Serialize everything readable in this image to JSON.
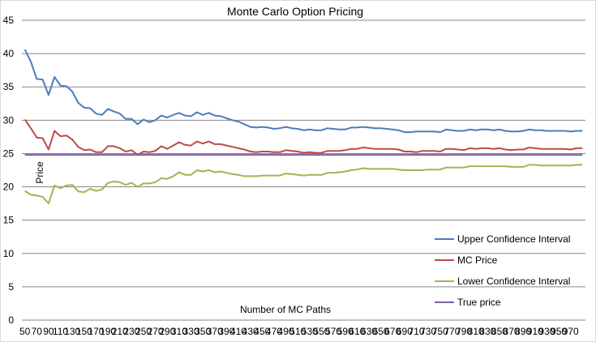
{
  "chart_data": {
    "type": "line",
    "title": "Monte Carlo Option Pricing",
    "xlabel": "Number of MC Paths",
    "ylabel": "Price",
    "ylim": [
      0,
      45
    ],
    "yticks": [
      0,
      5,
      10,
      15,
      20,
      25,
      30,
      35,
      40,
      45
    ],
    "x": [
      50,
      60,
      70,
      80,
      90,
      100,
      110,
      120,
      130,
      140,
      150,
      160,
      170,
      180,
      190,
      200,
      210,
      220,
      230,
      240,
      250,
      260,
      270,
      280,
      290,
      300,
      310,
      320,
      330,
      340,
      350,
      360,
      370,
      380,
      390,
      400,
      410,
      420,
      430,
      440,
      450,
      460,
      470,
      480,
      490,
      500,
      510,
      520,
      530,
      540,
      550,
      560,
      570,
      580,
      590,
      600,
      610,
      620,
      630,
      640,
      650,
      660,
      670,
      680,
      690,
      700,
      710,
      720,
      730,
      740,
      750,
      760,
      770,
      780,
      790,
      800,
      810,
      820,
      830,
      840,
      850,
      860,
      870,
      880,
      890,
      900,
      910,
      920,
      930,
      940,
      950,
      960,
      970,
      980,
      990
    ],
    "xtick_labels": [
      "50",
      "70",
      "90",
      "110",
      "130",
      "150",
      "170",
      "190",
      "210",
      "230",
      "250",
      "270",
      "290",
      "310",
      "330",
      "350",
      "370",
      "390",
      "410",
      "430",
      "450",
      "470",
      "490",
      "510",
      "530",
      "550",
      "570",
      "590",
      "610",
      "630",
      "650",
      "670",
      "690",
      "710",
      "730",
      "750",
      "770",
      "790",
      "810",
      "830",
      "850",
      "870",
      "890",
      "910",
      "930",
      "950",
      "970"
    ],
    "grid": "horizontal",
    "legend_position": "right",
    "series": [
      {
        "name": "Upper Confidence Interval",
        "color": "#4a7ebb",
        "values": [
          40.6,
          38.8,
          36.2,
          36.1,
          33.8,
          36.5,
          35.2,
          35.1,
          34.3,
          32.6,
          31.9,
          31.8,
          31.0,
          30.8,
          31.7,
          31.3,
          31.0,
          30.2,
          30.2,
          29.4,
          30.1,
          29.7,
          30.0,
          30.7,
          30.4,
          30.8,
          31.1,
          30.7,
          30.6,
          31.2,
          30.8,
          31.1,
          30.7,
          30.6,
          30.3,
          30.0,
          29.8,
          29.4,
          29.0,
          28.9,
          29.0,
          28.9,
          28.7,
          28.8,
          29.0,
          28.8,
          28.7,
          28.5,
          28.6,
          28.5,
          28.5,
          28.8,
          28.7,
          28.6,
          28.6,
          28.9,
          28.9,
          29.0,
          28.9,
          28.8,
          28.8,
          28.7,
          28.6,
          28.5,
          28.2,
          28.2,
          28.3,
          28.3,
          28.3,
          28.3,
          28.2,
          28.6,
          28.5,
          28.4,
          28.4,
          28.6,
          28.5,
          28.6,
          28.6,
          28.5,
          28.6,
          28.4,
          28.3,
          28.3,
          28.4,
          28.6,
          28.5,
          28.5,
          28.4,
          28.4,
          28.4,
          28.4,
          28.3,
          28.4,
          28.4
        ]
      },
      {
        "name": "MC Price",
        "color": "#be4b48",
        "values": [
          30.1,
          28.8,
          27.4,
          27.3,
          25.6,
          28.4,
          27.6,
          27.7,
          27.1,
          26.0,
          25.5,
          25.6,
          25.2,
          25.2,
          26.1,
          26.1,
          25.8,
          25.3,
          25.5,
          24.8,
          25.3,
          25.2,
          25.4,
          26.1,
          25.7,
          26.2,
          26.7,
          26.3,
          26.2,
          26.8,
          26.5,
          26.8,
          26.4,
          26.4,
          26.2,
          26.0,
          25.8,
          25.6,
          25.3,
          25.2,
          25.3,
          25.3,
          25.2,
          25.2,
          25.5,
          25.4,
          25.3,
          25.1,
          25.2,
          25.1,
          25.1,
          25.4,
          25.4,
          25.4,
          25.5,
          25.7,
          25.7,
          25.9,
          25.8,
          25.7,
          25.7,
          25.7,
          25.7,
          25.6,
          25.3,
          25.3,
          25.2,
          25.4,
          25.4,
          25.4,
          25.3,
          25.7,
          25.7,
          25.6,
          25.5,
          25.8,
          25.7,
          25.8,
          25.8,
          25.7,
          25.8,
          25.6,
          25.5,
          25.6,
          25.6,
          25.9,
          25.8,
          25.7,
          25.7,
          25.7,
          25.7,
          25.7,
          25.6,
          25.8,
          25.8
        ]
      },
      {
        "name": "Lower Confidence Interval",
        "color": "#98b954",
        "values": [
          19.4,
          18.8,
          18.7,
          18.5,
          17.5,
          20.2,
          19.8,
          20.2,
          20.3,
          19.3,
          19.2,
          19.7,
          19.4,
          19.6,
          20.6,
          20.8,
          20.7,
          20.3,
          20.6,
          20.0,
          20.5,
          20.5,
          20.7,
          21.3,
          21.2,
          21.6,
          22.2,
          21.8,
          21.8,
          22.5,
          22.3,
          22.5,
          22.2,
          22.3,
          22.1,
          21.9,
          21.8,
          21.6,
          21.6,
          21.6,
          21.7,
          21.7,
          21.7,
          21.7,
          22.0,
          21.9,
          21.8,
          21.7,
          21.8,
          21.8,
          21.8,
          22.1,
          22.1,
          22.2,
          22.3,
          22.5,
          22.6,
          22.8,
          22.7,
          22.7,
          22.7,
          22.7,
          22.7,
          22.6,
          22.5,
          22.5,
          22.5,
          22.5,
          22.6,
          22.6,
          22.6,
          22.9,
          22.9,
          22.9,
          22.9,
          23.1,
          23.1,
          23.1,
          23.1,
          23.1,
          23.1,
          23.1,
          23.0,
          23.0,
          23.0,
          23.3,
          23.3,
          23.2,
          23.2,
          23.2,
          23.2,
          23.2,
          23.2,
          23.3,
          23.3
        ]
      },
      {
        "name": "True price",
        "color": "#7d60a0",
        "values": [
          24.8,
          24.8,
          24.8,
          24.8,
          24.8,
          24.8,
          24.8,
          24.8,
          24.8,
          24.8,
          24.8,
          24.8,
          24.8,
          24.8,
          24.8,
          24.8,
          24.8,
          24.8,
          24.8,
          24.8,
          24.8,
          24.8,
          24.8,
          24.8,
          24.8,
          24.8,
          24.8,
          24.8,
          24.8,
          24.8,
          24.8,
          24.8,
          24.8,
          24.8,
          24.8,
          24.8,
          24.8,
          24.8,
          24.8,
          24.8,
          24.8,
          24.8,
          24.8,
          24.8,
          24.8,
          24.8,
          24.8,
          24.8,
          24.8,
          24.8,
          24.8,
          24.8,
          24.8,
          24.8,
          24.8,
          24.8,
          24.8,
          24.8,
          24.8,
          24.8,
          24.8,
          24.8,
          24.8,
          24.8,
          24.8,
          24.8,
          24.8,
          24.8,
          24.8,
          24.8,
          24.8,
          24.8,
          24.8,
          24.8,
          24.8,
          24.8,
          24.8,
          24.8,
          24.8,
          24.8,
          24.8,
          24.8,
          24.8,
          24.8,
          24.8,
          24.8,
          24.8,
          24.8,
          24.8,
          24.8,
          24.8,
          24.8,
          24.8,
          24.8,
          24.8
        ]
      }
    ]
  }
}
